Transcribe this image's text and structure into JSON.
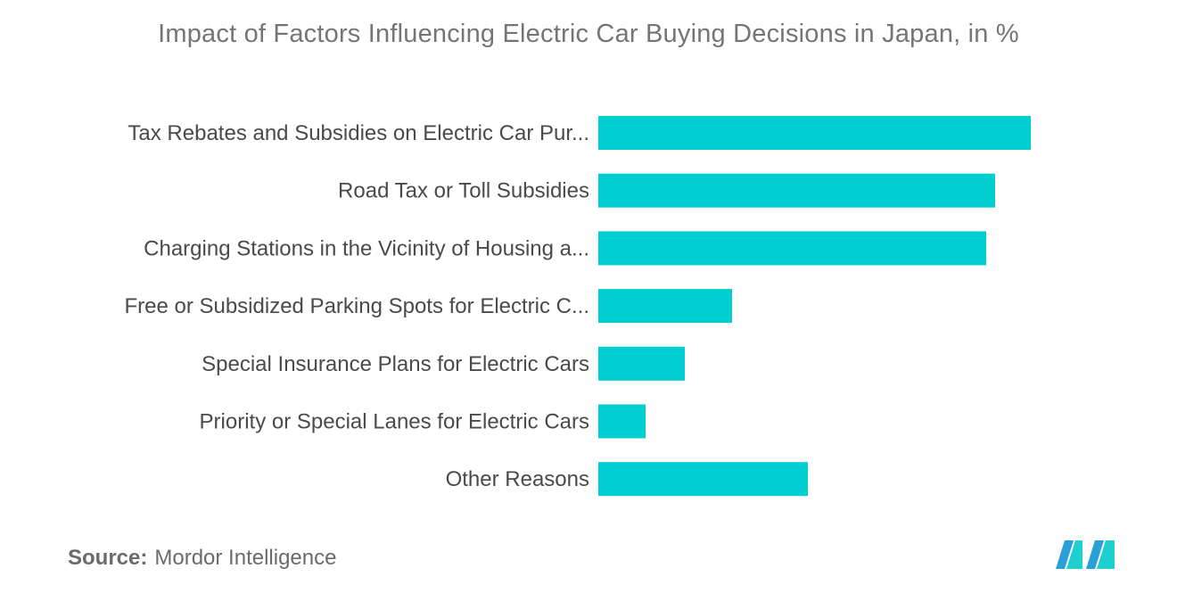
{
  "chart_data": {
    "type": "bar",
    "orientation": "horizontal",
    "title": "Impact of Factors Influencing Electric Car Buying Decisions in Japan, in %",
    "categories": [
      "Tax Rebates and Subsidies on Electric Car Pur...",
      "Road Tax or Toll Subsidies",
      "Charging Stations in the Vicinity of Housing a...",
      "Free or Subsidized Parking Spots for Electric C...",
      "Special Insurance Plans for Electric Cars",
      "Priority or Special Lanes for Electric Cars",
      "Other Reasons"
    ],
    "values": [
      48.5,
      44.5,
      43.5,
      15,
      9.7,
      5.3,
      23.5
    ],
    "xlim": [
      0,
      50
    ],
    "bar_color": "#00CED1",
    "grid": false,
    "legend": "none"
  },
  "source": {
    "label": "Source:",
    "value": "Mordor Intelligence"
  },
  "logo": {
    "name": "mordor-intelligence-logo",
    "colors": [
      "#2A9FD8",
      "#1ECFCF"
    ]
  }
}
